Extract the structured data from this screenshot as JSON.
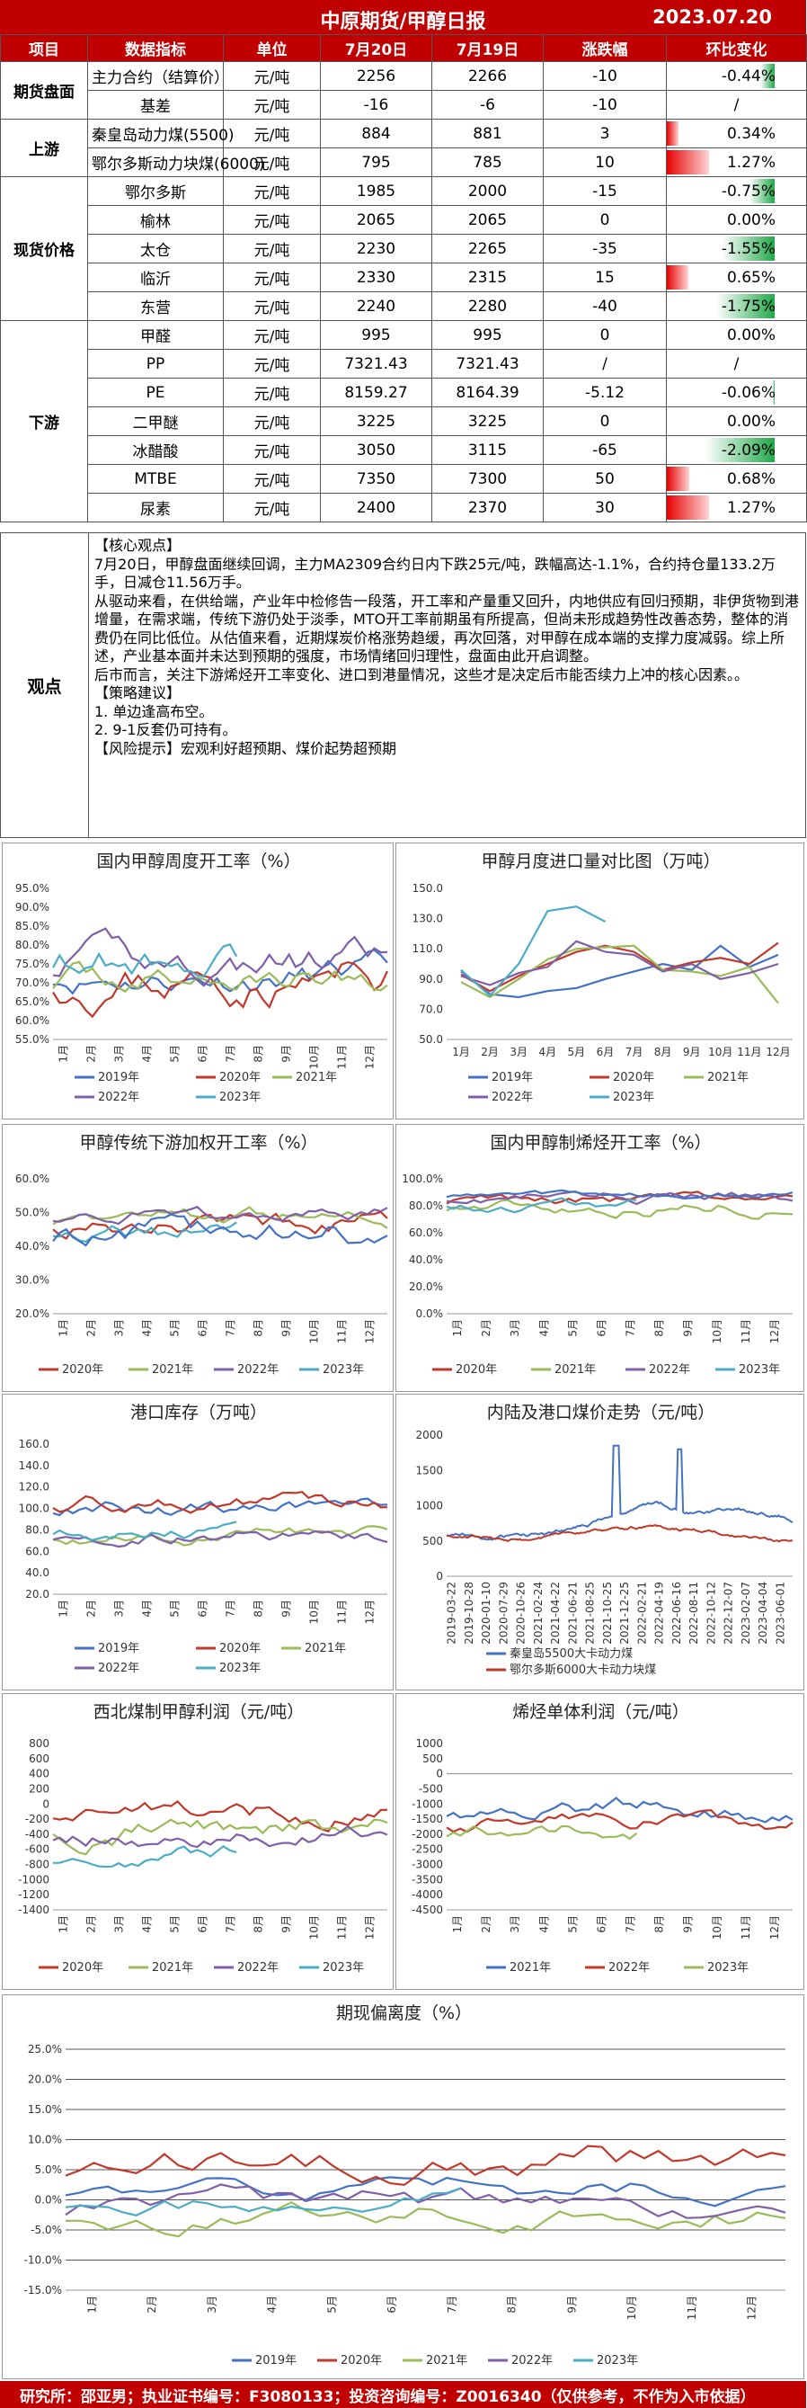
{
  "header": {
    "title": "中原期货/甲醇日报",
    "date": "2023.07.20"
  },
  "table": {
    "headers": [
      "项目",
      "数据指标",
      "单位",
      "7月20日",
      "7月19日",
      "涨跌幅",
      "环比变化"
    ],
    "groups": [
      {
        "category": "期货盘面",
        "rows": [
          {
            "name": "主力合约（结算价）",
            "unit": "元/吨",
            "v1": "2256",
            "v2": "2266",
            "chg": "-10",
            "pct": "-0.44%",
            "pctv": -0.44
          },
          {
            "name": "基差",
            "unit": "元/吨",
            "v1": "-16",
            "v2": "-6",
            "chg": "-10",
            "pct": "/",
            "pctv": 0
          }
        ]
      },
      {
        "category": "上游",
        "rows": [
          {
            "name": "秦皇岛动力煤(5500)",
            "unit": "元/吨",
            "v1": "884",
            "v2": "881",
            "chg": "3",
            "pct": "0.34%",
            "pctv": 0.34
          },
          {
            "name": "鄂尔多斯动力块煤(6000)",
            "unit": "元/吨",
            "v1": "795",
            "v2": "785",
            "chg": "10",
            "pct": "1.27%",
            "pctv": 1.27
          }
        ]
      },
      {
        "category": "现货价格",
        "rows": [
          {
            "name": "鄂尔多斯",
            "unit": "元/吨",
            "v1": "1985",
            "v2": "2000",
            "chg": "-15",
            "pct": "-0.75%",
            "pctv": -0.75
          },
          {
            "name": "榆林",
            "unit": "元/吨",
            "v1": "2065",
            "v2": "2065",
            "chg": "0",
            "pct": "0.00%",
            "pctv": 0
          },
          {
            "name": "太仓",
            "unit": "元/吨",
            "v1": "2230",
            "v2": "2265",
            "chg": "-35",
            "pct": "-1.55%",
            "pctv": -1.55
          },
          {
            "name": "临沂",
            "unit": "元/吨",
            "v1": "2330",
            "v2": "2315",
            "chg": "15",
            "pct": "0.65%",
            "pctv": 0.65
          },
          {
            "name": "东营",
            "unit": "元/吨",
            "v1": "2240",
            "v2": "2280",
            "chg": "-40",
            "pct": "-1.75%",
            "pctv": -1.75
          }
        ]
      },
      {
        "category": "下游",
        "rows": [
          {
            "name": "甲醛",
            "unit": "元/吨",
            "v1": "995",
            "v2": "995",
            "chg": "0",
            "pct": "0.00%",
            "pctv": 0
          },
          {
            "name": "PP",
            "unit": "元/吨",
            "v1": "7321.43",
            "v2": "7321.43",
            "chg": "/",
            "pct": "/",
            "pctv": 0
          },
          {
            "name": "PE",
            "unit": "元/吨",
            "v1": "8159.27",
            "v2": "8164.39",
            "chg": "-5.12",
            "pct": "-0.06%",
            "pctv": -0.06
          },
          {
            "name": "二甲醚",
            "unit": "元/吨",
            "v1": "3225",
            "v2": "3225",
            "chg": "0",
            "pct": "0.00%",
            "pctv": 0
          },
          {
            "name": "冰醋酸",
            "unit": "元/吨",
            "v1": "3050",
            "v2": "3115",
            "chg": "-65",
            "pct": "-2.09%",
            "pctv": -2.09
          },
          {
            "name": "MTBE",
            "unit": "元/吨",
            "v1": "7350",
            "v2": "7300",
            "chg": "50",
            "pct": "0.68%",
            "pctv": 0.68
          },
          {
            "name": "尿素",
            "unit": "元/吨",
            "v1": "2400",
            "v2": "2370",
            "chg": "30",
            "pct": "1.27%",
            "pctv": 1.27
          }
        ]
      }
    ]
  },
  "viewpoint": {
    "label": "观点",
    "lines": [
      "【核心观点】",
      "7月20日，甲醇盘面继续回调，主力MA2309合约日内下跌25元/吨，跌幅高达-1.1%，合约持仓量133.2万手，日减仓11.56万手。",
      "从驱动来看，在供给端，产业年中检修告一段落，开工率和产量重又回升，内地供应有回归预期，非伊货物到港增量，在需求端，传统下游仍处于淡季，MTO开工率前期虽有所提高，但尚未形成趋势性改善态势，整体的消费仍在同比低位。从估值来看，近期煤炭价格涨势趋缓，再次回落，对甲醇在成本端的支撑力度减弱。综上所述，产业基本面并未达到预期的强度，市场情绪回归理性，盘面由此开启调整。",
      "后市而言，关注下游烯烃开工率变化、进口到港量情况，这些才是决定后市能否续力上冲的核心因素。。",
      "【策略建议】",
      "1. 单边逢高布空。",
      "2. 9-1反套仍可持有。",
      "【风险提示】宏观利好超预期、煤价起势超预期"
    ]
  },
  "charts": {
    "c1": {
      "title": "国内甲醇周度开工率（%）",
      "yticks": [
        "95.0%",
        "90.0%",
        "85.0%",
        "80.0%",
        "75.0%",
        "70.0%",
        "65.0%",
        "60.0%",
        "55.0%"
      ],
      "legend": [
        "2019年",
        "2020年",
        "2021年",
        "2022年",
        "2023年"
      ]
    },
    "c2": {
      "title": "甲醇月度进口量对比图（万吨）",
      "yticks": [
        "150.0",
        "130.0",
        "110.0",
        "90.0",
        "70.0",
        "50.0"
      ],
      "xticks": [
        "1月",
        "2月",
        "3月",
        "4月",
        "5月",
        "6月",
        "7月",
        "8月",
        "9月",
        "10月",
        "11月",
        "12月"
      ],
      "legend": [
        "2019年",
        "2020年",
        "2021年",
        "2022年",
        "2023年"
      ]
    },
    "c3": {
      "title": "甲醇传统下游加权开工率（%）",
      "yticks": [
        "60.0%",
        "50.0%",
        "40.0%",
        "30.0%",
        "20.0%"
      ],
      "legend": [
        "2020年",
        "2021年",
        "2022年",
        "2023年"
      ]
    },
    "c4": {
      "title": "国内甲醇制烯烃开工率（%）",
      "yticks": [
        "100.0%",
        "80.0%",
        "60.0%",
        "40.0%",
        "20.0%",
        "0.0%"
      ],
      "legend": [
        "2020年",
        "2021年",
        "2022年",
        "2023年"
      ]
    },
    "c5": {
      "title": "港口库存（万吨）",
      "yticks": [
        "160.0",
        "140.0",
        "120.0",
        "100.0",
        "80.0",
        "60.0",
        "40.0",
        "20.0"
      ],
      "legend": [
        "2019年",
        "2020年",
        "2021年",
        "2022年",
        "2023年"
      ]
    },
    "c6": {
      "title": "内陆及港口煤价走势（元/吨）",
      "yticks": [
        "2000",
        "1500",
        "1000",
        "500",
        "0"
      ],
      "xticks": [
        "2019-03-22",
        "2019-10-28",
        "2020-01-10",
        "2020-07-29",
        "2020-10-26",
        "2021-02-24",
        "2021-04-22",
        "2021-06-21",
        "2021-08-25",
        "2021-10-25",
        "2021-12-25",
        "2022-02-21",
        "2022-04-19",
        "2022-06-16",
        "2022-08-11",
        "2022-10-12",
        "2022-12-07",
        "2023-02-07",
        "2023-04-04",
        "2023-06-01"
      ],
      "legend": [
        "秦皇岛5500大卡动力煤",
        "鄂尔多斯6000大卡动力块煤"
      ]
    },
    "c7": {
      "title": "西北煤制甲醇利润（元/吨）",
      "yticks": [
        "800",
        "600",
        "400",
        "200",
        "0",
        "-200",
        "-400",
        "-600",
        "-800",
        "-1000",
        "-1200",
        "-1400"
      ],
      "legend": [
        "2020年",
        "2021年",
        "2022年",
        "2023年"
      ]
    },
    "c8": {
      "title": "烯烃单体利润（元/吨）",
      "yticks": [
        "1000",
        "500",
        "0",
        "-500",
        "-1000",
        "-1500",
        "-2000",
        "-2500",
        "-3000",
        "-3500",
        "-4000",
        "-4500"
      ],
      "legend": [
        "2021年",
        "2022年",
        "2023年"
      ]
    },
    "c9": {
      "title": "期现偏离度（%）",
      "yticks": [
        "25.0%",
        "20.0%",
        "15.0%",
        "10.0%",
        "5.0%",
        "0.0%",
        "-5.0%",
        "-10.0%",
        "-15.0%"
      ],
      "legend": [
        "2019年",
        "2020年",
        "2021年",
        "2022年",
        "2023年"
      ]
    },
    "month_ticks": [
      "1月",
      "2月",
      "3月",
      "4月",
      "5月",
      "6月",
      "7月",
      "8月",
      "9月",
      "10月",
      "11月",
      "12月"
    ]
  },
  "colors": {
    "y2019": "#4472c4",
    "y2020": "#c0392b",
    "y2021": "#9bbb59",
    "y2022": "#7f5fa8",
    "y2023": "#4bacc6"
  },
  "footer": "研究所：邵亚男；执业证书编号：F3080133；投资咨询编号：Z0016340（仅供参考，不作为入市依据）"
}
